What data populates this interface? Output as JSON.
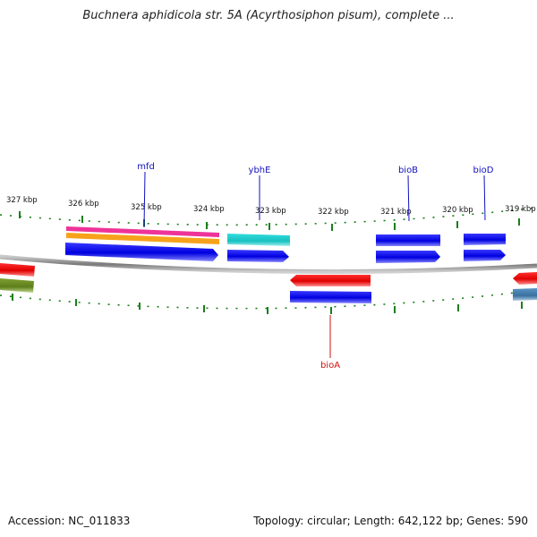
{
  "title": "Buchnera aphidicola str. 5A (Acyrthosiphon pisum), complete ...",
  "footer": {
    "accession_label": "Accession:",
    "accession": "NC_011833",
    "topology_label": "Topology:",
    "topology": "circular",
    "length_label": "Length:",
    "length": "642,122 bp",
    "genes_label": "Genes:",
    "genes": "590"
  },
  "ticks": [
    "327 kbp",
    "326 kbp",
    "325 kbp",
    "324 kbp",
    "323 kbp",
    "322 kbp",
    "321 kbp",
    "320 kbp",
    "319 kbp"
  ],
  "gene_labels": [
    {
      "name": "mfd",
      "color": "#1010c0"
    },
    {
      "name": "ybhE",
      "color": "#1010c0"
    },
    {
      "name": "bioB",
      "color": "#1010c0"
    },
    {
      "name": "bioD",
      "color": "#1010c0"
    },
    {
      "name": "bioA",
      "color": "#d01010"
    }
  ],
  "colors": {
    "backbone": "#8a8a8a",
    "tick": "#1a7f1a",
    "forward_cds": "#0000ee",
    "reverse_cds": "#ee0000",
    "gene_magenta": "#ee3399",
    "gene_orange": "#f7a21b",
    "gene_cyan": "#22cccc",
    "gene_olive": "#6b8e23",
    "gene_steel": "#4682b4"
  }
}
